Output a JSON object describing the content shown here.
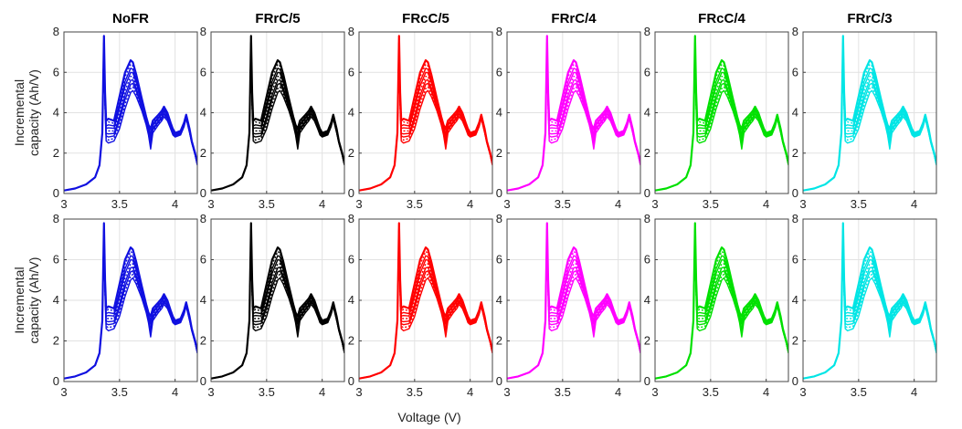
{
  "figure": {
    "xlabel": "Voltage (V)",
    "ylabel_lines": [
      "Incremental",
      "capacity (Ah/V)"
    ]
  },
  "chart_data": {
    "type": "line",
    "x_ticks": [
      3,
      3.5,
      4
    ],
    "x_tick_labels": [
      "3",
      "3.5",
      "4"
    ],
    "y_ticks": [
      0,
      2,
      4,
      6,
      8
    ],
    "y_tick_labels": [
      "0",
      "2",
      "4",
      "6",
      "8"
    ],
    "xlim": [
      3.0,
      4.2
    ],
    "ylim": [
      0,
      8
    ],
    "grid": true,
    "panels": [
      {
        "title": "NoFR",
        "color": "#1010e0"
      },
      {
        "title": "FRrC/5",
        "color": "#000000"
      },
      {
        "title": "FRcC/5",
        "color": "#ff0000"
      },
      {
        "title": "FRrC/4",
        "color": "#ff00ff"
      },
      {
        "title": "FRcC/4",
        "color": "#00e000"
      },
      {
        "title": "FRrC/3",
        "color": "#00e5e5"
      }
    ],
    "curve": {
      "x": [
        3.0,
        3.1,
        3.2,
        3.28,
        3.32,
        3.345,
        3.36,
        3.37,
        3.38,
        3.4,
        3.45,
        3.5,
        3.55,
        3.6,
        3.62,
        3.65,
        3.7,
        3.74,
        3.76,
        3.78,
        3.8,
        3.85,
        3.88,
        3.9,
        3.93,
        3.96,
        3.98,
        4.0,
        4.05,
        4.08,
        4.1,
        4.13,
        4.15,
        4.18,
        4.2
      ],
      "y_upper": [
        0.15,
        0.25,
        0.45,
        0.8,
        1.4,
        3.0,
        7.8,
        5.0,
        3.6,
        3.7,
        3.6,
        4.8,
        6.0,
        6.6,
        6.5,
        5.9,
        4.7,
        3.8,
        3.4,
        3.2,
        3.6,
        3.9,
        4.1,
        4.3,
        4.0,
        3.5,
        3.2,
        3.0,
        3.1,
        3.5,
        3.9,
        3.2,
        2.6,
        2.0,
        1.5
      ],
      "y_lower": [
        0.15,
        0.25,
        0.45,
        0.8,
        1.4,
        3.0,
        7.8,
        4.2,
        2.6,
        2.5,
        2.6,
        3.2,
        4.2,
        5.0,
        5.1,
        4.8,
        4.1,
        3.4,
        2.9,
        2.2,
        3.0,
        3.4,
        3.6,
        3.8,
        3.6,
        3.2,
        2.9,
        2.8,
        2.9,
        3.3,
        3.7,
        3.0,
        2.5,
        1.9,
        1.4
      ]
    }
  }
}
